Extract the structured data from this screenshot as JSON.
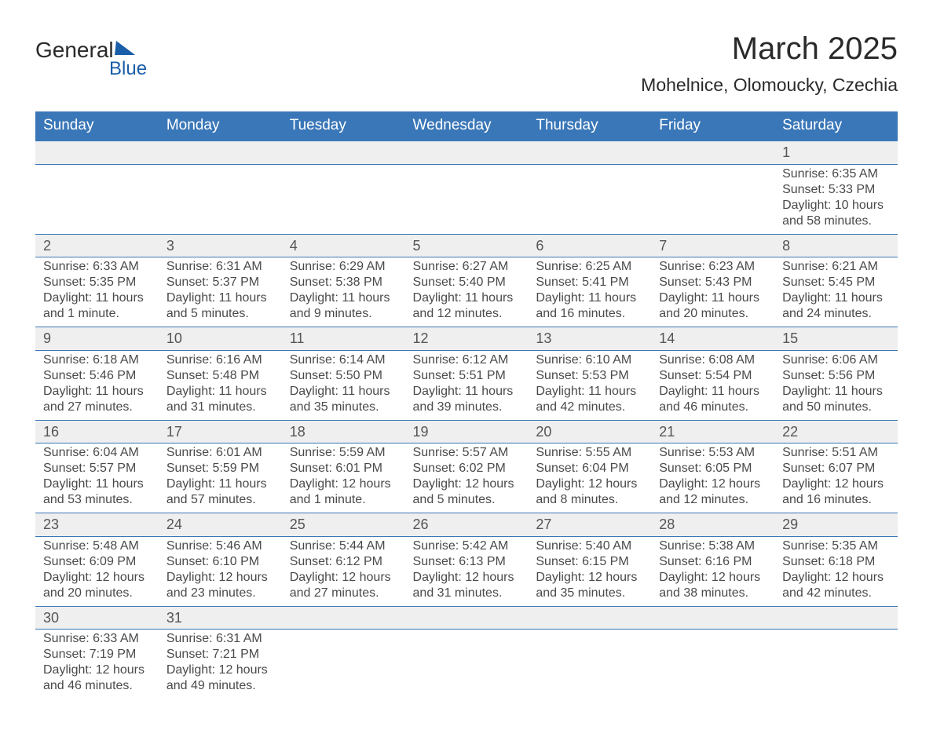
{
  "logo": {
    "text_top": "General",
    "text_bottom": "Blue",
    "brand_color": "#1a5da8"
  },
  "title": "March 2025",
  "location": "Mohelnice, Olomoucky, Czechia",
  "colors": {
    "header_bg": "#3a77b8",
    "header_text": "#ffffff",
    "row_divider": "#3a77b8",
    "daynum_bg": "#efefef",
    "body_text": "#4a4a4a"
  },
  "day_headers": [
    "Sunday",
    "Monday",
    "Tuesday",
    "Wednesday",
    "Thursday",
    "Friday",
    "Saturday"
  ],
  "weeks": [
    [
      null,
      null,
      null,
      null,
      null,
      null,
      {
        "n": "1",
        "sr": "Sunrise: 6:35 AM",
        "ss": "Sunset: 5:33 PM",
        "d1": "Daylight: 10 hours",
        "d2": "and 58 minutes."
      }
    ],
    [
      {
        "n": "2",
        "sr": "Sunrise: 6:33 AM",
        "ss": "Sunset: 5:35 PM",
        "d1": "Daylight: 11 hours",
        "d2": "and 1 minute."
      },
      {
        "n": "3",
        "sr": "Sunrise: 6:31 AM",
        "ss": "Sunset: 5:37 PM",
        "d1": "Daylight: 11 hours",
        "d2": "and 5 minutes."
      },
      {
        "n": "4",
        "sr": "Sunrise: 6:29 AM",
        "ss": "Sunset: 5:38 PM",
        "d1": "Daylight: 11 hours",
        "d2": "and 9 minutes."
      },
      {
        "n": "5",
        "sr": "Sunrise: 6:27 AM",
        "ss": "Sunset: 5:40 PM",
        "d1": "Daylight: 11 hours",
        "d2": "and 12 minutes."
      },
      {
        "n": "6",
        "sr": "Sunrise: 6:25 AM",
        "ss": "Sunset: 5:41 PM",
        "d1": "Daylight: 11 hours",
        "d2": "and 16 minutes."
      },
      {
        "n": "7",
        "sr": "Sunrise: 6:23 AM",
        "ss": "Sunset: 5:43 PM",
        "d1": "Daylight: 11 hours",
        "d2": "and 20 minutes."
      },
      {
        "n": "8",
        "sr": "Sunrise: 6:21 AM",
        "ss": "Sunset: 5:45 PM",
        "d1": "Daylight: 11 hours",
        "d2": "and 24 minutes."
      }
    ],
    [
      {
        "n": "9",
        "sr": "Sunrise: 6:18 AM",
        "ss": "Sunset: 5:46 PM",
        "d1": "Daylight: 11 hours",
        "d2": "and 27 minutes."
      },
      {
        "n": "10",
        "sr": "Sunrise: 6:16 AM",
        "ss": "Sunset: 5:48 PM",
        "d1": "Daylight: 11 hours",
        "d2": "and 31 minutes."
      },
      {
        "n": "11",
        "sr": "Sunrise: 6:14 AM",
        "ss": "Sunset: 5:50 PM",
        "d1": "Daylight: 11 hours",
        "d2": "and 35 minutes."
      },
      {
        "n": "12",
        "sr": "Sunrise: 6:12 AM",
        "ss": "Sunset: 5:51 PM",
        "d1": "Daylight: 11 hours",
        "d2": "and 39 minutes."
      },
      {
        "n": "13",
        "sr": "Sunrise: 6:10 AM",
        "ss": "Sunset: 5:53 PM",
        "d1": "Daylight: 11 hours",
        "d2": "and 42 minutes."
      },
      {
        "n": "14",
        "sr": "Sunrise: 6:08 AM",
        "ss": "Sunset: 5:54 PM",
        "d1": "Daylight: 11 hours",
        "d2": "and 46 minutes."
      },
      {
        "n": "15",
        "sr": "Sunrise: 6:06 AM",
        "ss": "Sunset: 5:56 PM",
        "d1": "Daylight: 11 hours",
        "d2": "and 50 minutes."
      }
    ],
    [
      {
        "n": "16",
        "sr": "Sunrise: 6:04 AM",
        "ss": "Sunset: 5:57 PM",
        "d1": "Daylight: 11 hours",
        "d2": "and 53 minutes."
      },
      {
        "n": "17",
        "sr": "Sunrise: 6:01 AM",
        "ss": "Sunset: 5:59 PM",
        "d1": "Daylight: 11 hours",
        "d2": "and 57 minutes."
      },
      {
        "n": "18",
        "sr": "Sunrise: 5:59 AM",
        "ss": "Sunset: 6:01 PM",
        "d1": "Daylight: 12 hours",
        "d2": "and 1 minute."
      },
      {
        "n": "19",
        "sr": "Sunrise: 5:57 AM",
        "ss": "Sunset: 6:02 PM",
        "d1": "Daylight: 12 hours",
        "d2": "and 5 minutes."
      },
      {
        "n": "20",
        "sr": "Sunrise: 5:55 AM",
        "ss": "Sunset: 6:04 PM",
        "d1": "Daylight: 12 hours",
        "d2": "and 8 minutes."
      },
      {
        "n": "21",
        "sr": "Sunrise: 5:53 AM",
        "ss": "Sunset: 6:05 PM",
        "d1": "Daylight: 12 hours",
        "d2": "and 12 minutes."
      },
      {
        "n": "22",
        "sr": "Sunrise: 5:51 AM",
        "ss": "Sunset: 6:07 PM",
        "d1": "Daylight: 12 hours",
        "d2": "and 16 minutes."
      }
    ],
    [
      {
        "n": "23",
        "sr": "Sunrise: 5:48 AM",
        "ss": "Sunset: 6:09 PM",
        "d1": "Daylight: 12 hours",
        "d2": "and 20 minutes."
      },
      {
        "n": "24",
        "sr": "Sunrise: 5:46 AM",
        "ss": "Sunset: 6:10 PM",
        "d1": "Daylight: 12 hours",
        "d2": "and 23 minutes."
      },
      {
        "n": "25",
        "sr": "Sunrise: 5:44 AM",
        "ss": "Sunset: 6:12 PM",
        "d1": "Daylight: 12 hours",
        "d2": "and 27 minutes."
      },
      {
        "n": "26",
        "sr": "Sunrise: 5:42 AM",
        "ss": "Sunset: 6:13 PM",
        "d1": "Daylight: 12 hours",
        "d2": "and 31 minutes."
      },
      {
        "n": "27",
        "sr": "Sunrise: 5:40 AM",
        "ss": "Sunset: 6:15 PM",
        "d1": "Daylight: 12 hours",
        "d2": "and 35 minutes."
      },
      {
        "n": "28",
        "sr": "Sunrise: 5:38 AM",
        "ss": "Sunset: 6:16 PM",
        "d1": "Daylight: 12 hours",
        "d2": "and 38 minutes."
      },
      {
        "n": "29",
        "sr": "Sunrise: 5:35 AM",
        "ss": "Sunset: 6:18 PM",
        "d1": "Daylight: 12 hours",
        "d2": "and 42 minutes."
      }
    ],
    [
      {
        "n": "30",
        "sr": "Sunrise: 6:33 AM",
        "ss": "Sunset: 7:19 PM",
        "d1": "Daylight: 12 hours",
        "d2": "and 46 minutes."
      },
      {
        "n": "31",
        "sr": "Sunrise: 6:31 AM",
        "ss": "Sunset: 7:21 PM",
        "d1": "Daylight: 12 hours",
        "d2": "and 49 minutes."
      },
      null,
      null,
      null,
      null,
      null
    ]
  ]
}
